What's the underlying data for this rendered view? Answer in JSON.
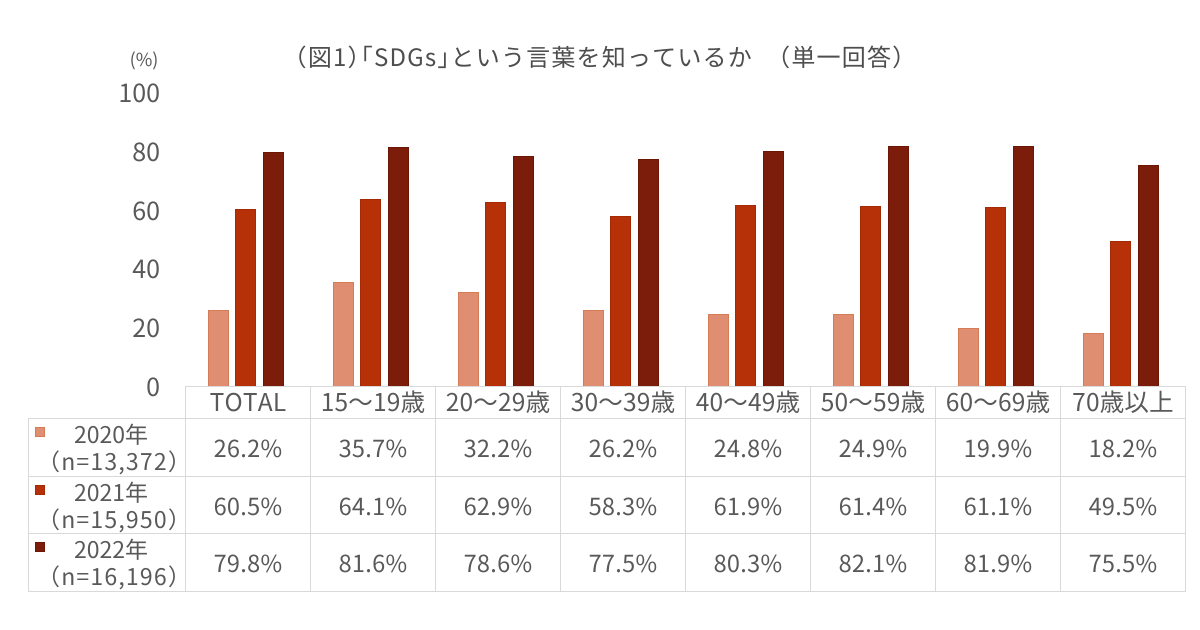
{
  "figure": {
    "background": "#FFFFFF"
  },
  "chart_data": {
    "type": "bar",
    "title": "（図1）「SDGs」という言葉を知っているか　（単一回答）",
    "unit_label": "(%)",
    "categories": [
      "TOTAL",
      "15～19歳",
      "20～29歳",
      "30～39歳",
      "40～49歳",
      "50～59歳",
      "60～69歳",
      "70歳以上"
    ],
    "series": [
      {
        "name": "2020年",
        "n_label": "（n=13,372）",
        "color": "#E08E72",
        "border_color": "#D47C55",
        "values": [
          26.2,
          35.7,
          32.2,
          26.2,
          24.8,
          24.9,
          19.9,
          18.2
        ]
      },
      {
        "name": "2021年",
        "n_label": "（n=15,950）",
        "color": "#B73108",
        "border_color": "#A32A05",
        "values": [
          60.5,
          64.1,
          62.9,
          58.3,
          61.9,
          61.4,
          61.1,
          49.5
        ]
      },
      {
        "name": "2022年",
        "n_label": "（n=16,196）",
        "color": "#7C1D0B",
        "border_color": "#6C1605",
        "values": [
          79.8,
          81.6,
          78.6,
          77.5,
          80.3,
          82.1,
          81.9,
          75.5
        ]
      }
    ],
    "ylim": [
      0,
      100
    ],
    "yticks": [
      0,
      20,
      40,
      60,
      80,
      100
    ],
    "grid": false,
    "legend_position": "table-rows",
    "value_suffix": "%",
    "value_decimals": 1,
    "xlabel": "",
    "ylabel": "(%)"
  },
  "style": {
    "text_color": "#595959",
    "title_color": "#4E4E4E",
    "table_border_color": "#D9D9D9"
  }
}
